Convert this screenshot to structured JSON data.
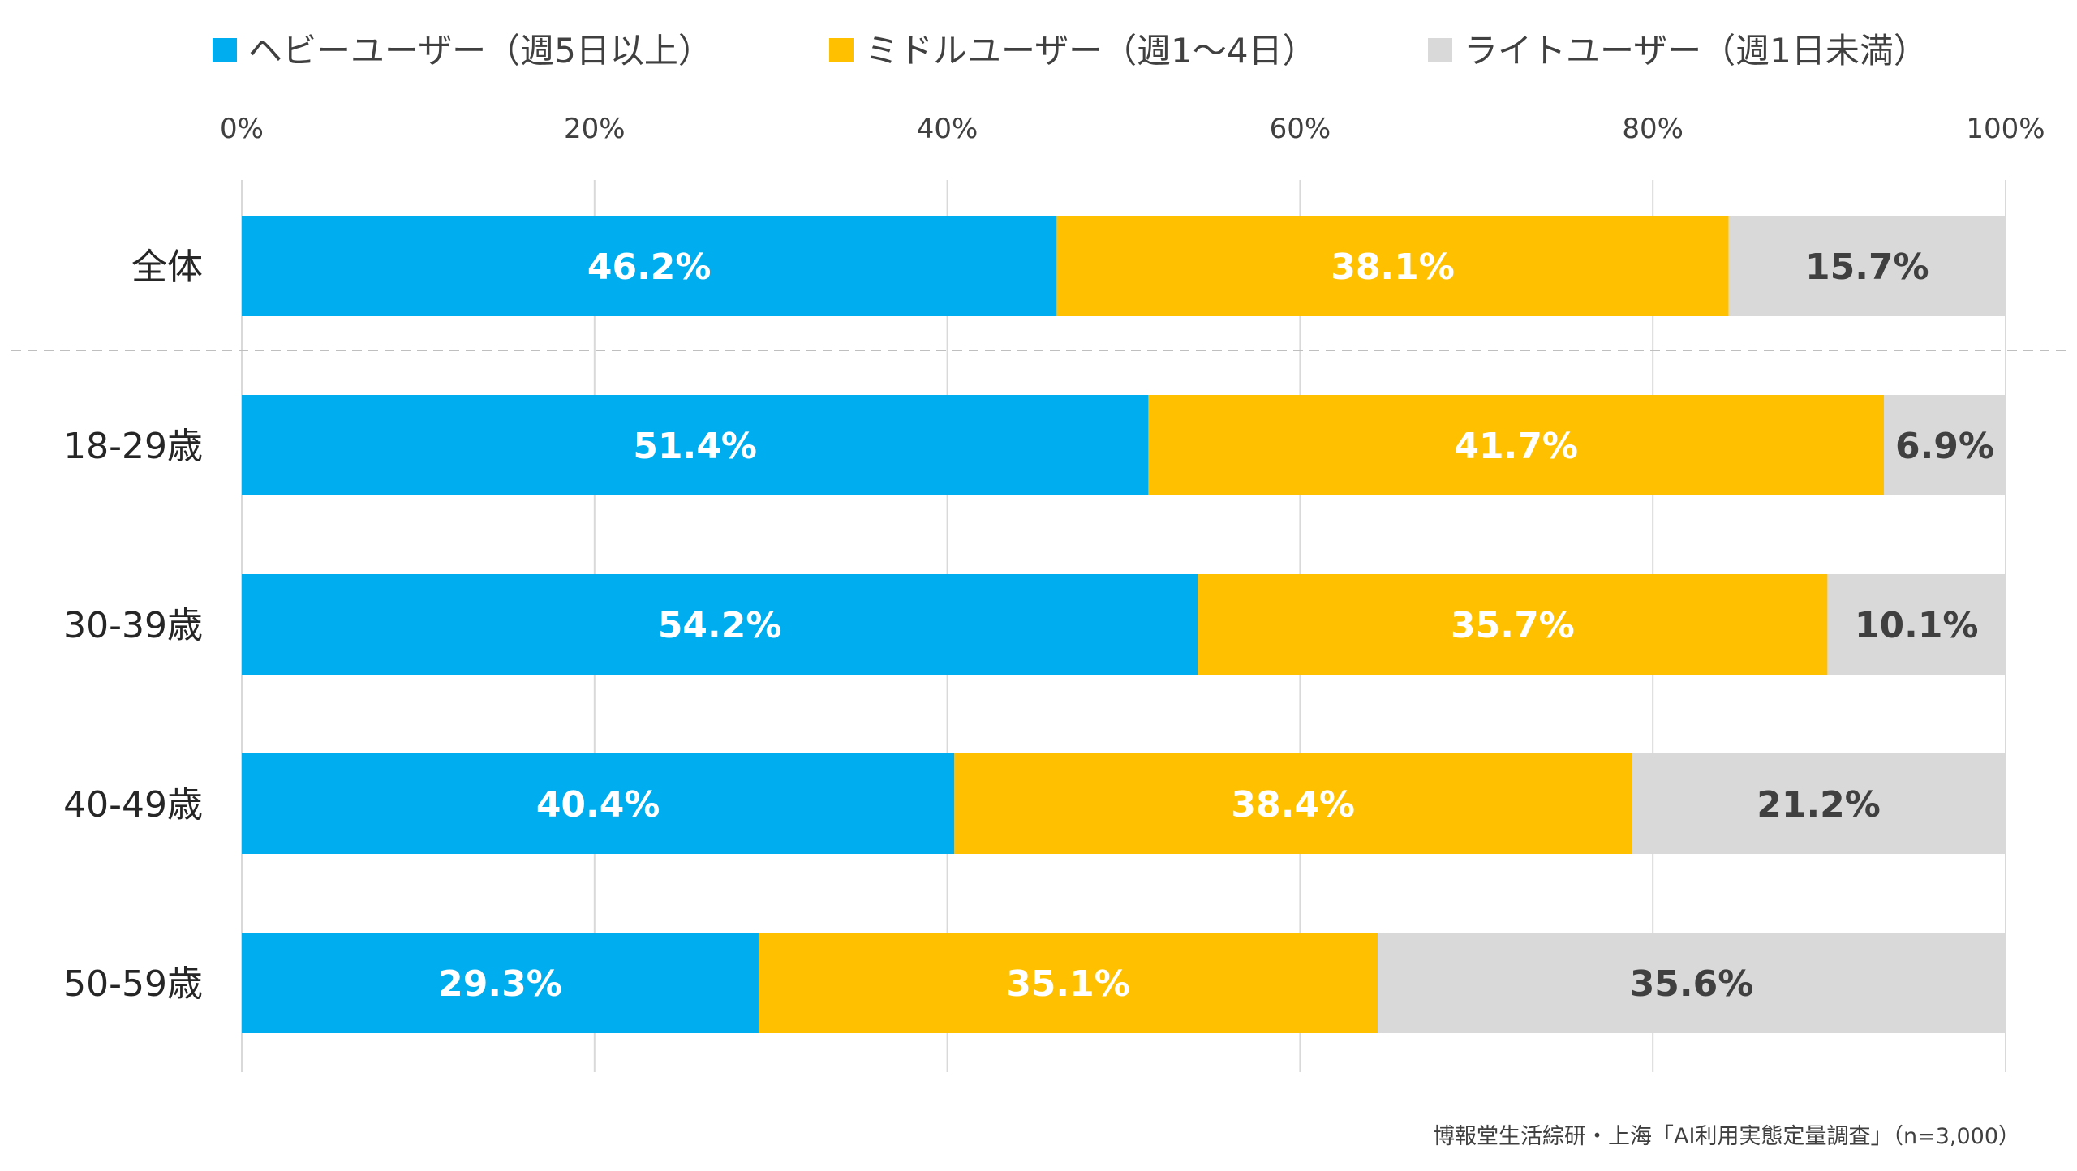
{
  "chart_data": {
    "type": "bar",
    "orientation": "horizontal",
    "stacked": "percent",
    "categories": [
      "全体",
      "18-29歳",
      "30-39歳",
      "40-49歳",
      "50-59歳"
    ],
    "series": [
      {
        "name": "ヘビーユーザー（週5日以上）",
        "color": "#00AEEF",
        "label_color": "#ffffff",
        "values": [
          46.2,
          51.4,
          54.2,
          40.4,
          29.3
        ],
        "labels": [
          "46.2%",
          "51.4%",
          "54.2%",
          "40.4%",
          "29.3%"
        ]
      },
      {
        "name": "ミドルユーザー（週1〜4日）",
        "color": "#FFC000",
        "label_color": "#ffffff",
        "values": [
          38.1,
          41.7,
          35.7,
          38.4,
          35.1
        ],
        "labels": [
          "38.1%",
          "41.7%",
          "35.7%",
          "38.4%",
          "35.1%"
        ]
      },
      {
        "name": "ライトユーザー（週1日未満）",
        "color": "#D9D9D9",
        "label_color": "#404040",
        "values": [
          15.7,
          6.9,
          10.1,
          21.2,
          35.6
        ],
        "labels": [
          "15.7%",
          "6.9%",
          "10.1%",
          "21.2%",
          "35.6%"
        ]
      }
    ],
    "xlim": [
      0,
      100
    ],
    "xticks": [
      "0%",
      "20%",
      "40%",
      "60%",
      "80%",
      "100%"
    ],
    "grid": true,
    "legend_position": "top",
    "axis_position": "top",
    "separator_after_category": "全体",
    "source": "博報堂生活綜研・上海「AI利用実態定量調査」（n=3,000）"
  }
}
